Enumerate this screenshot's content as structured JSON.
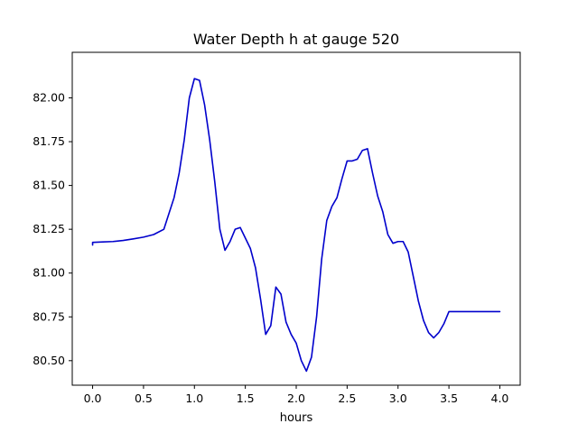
{
  "chart_data": {
    "type": "line",
    "title": "Water Depth h at gauge 520",
    "xlabel": "hours",
    "ylabel": "",
    "xlim": [
      -0.2,
      4.2
    ],
    "ylim": [
      80.36,
      82.26
    ],
    "xticks": [
      0.0,
      0.5,
      1.0,
      1.5,
      2.0,
      2.5,
      3.0,
      3.5,
      4.0
    ],
    "xtick_labels": [
      "0.0",
      "0.5",
      "1.0",
      "1.5",
      "2.0",
      "2.5",
      "3.0",
      "3.5",
      "4.0"
    ],
    "yticks": [
      80.5,
      80.75,
      81.0,
      81.25,
      81.5,
      81.75,
      82.0
    ],
    "ytick_labels": [
      "80.50",
      "80.75",
      "81.00",
      "81.25",
      "81.50",
      "81.75",
      "82.00"
    ],
    "grid": false,
    "legend": "none",
    "series": [
      {
        "color": "#0000cc",
        "x": [
          0.0,
          0.0,
          0.1,
          0.2,
          0.3,
          0.4,
          0.5,
          0.6,
          0.7,
          0.75,
          0.8,
          0.85,
          0.9,
          0.95,
          1.0,
          1.05,
          1.1,
          1.15,
          1.2,
          1.25,
          1.3,
          1.35,
          1.4,
          1.45,
          1.5,
          1.55,
          1.6,
          1.65,
          1.7,
          1.75,
          1.8,
          1.85,
          1.9,
          1.95,
          2.0,
          2.05,
          2.1,
          2.15,
          2.2,
          2.25,
          2.3,
          2.35,
          2.4,
          2.45,
          2.5,
          2.55,
          2.6,
          2.65,
          2.7,
          2.75,
          2.8,
          2.85,
          2.9,
          2.95,
          3.0,
          3.05,
          3.1,
          3.15,
          3.2,
          3.25,
          3.3,
          3.35,
          3.4,
          3.45,
          3.5,
          3.55,
          3.6,
          3.65,
          3.7,
          3.75,
          3.8,
          3.85,
          3.9,
          3.95,
          4.0
        ],
        "y": [
          81.16,
          81.175,
          81.178,
          81.18,
          81.186,
          81.195,
          81.205,
          81.22,
          81.25,
          81.34,
          81.43,
          81.57,
          81.76,
          82.0,
          82.11,
          82.1,
          81.96,
          81.76,
          81.52,
          81.25,
          81.13,
          81.18,
          81.25,
          81.26,
          81.2,
          81.14,
          81.03,
          80.85,
          80.65,
          80.7,
          80.92,
          80.88,
          80.72,
          80.65,
          80.6,
          80.5,
          80.44,
          80.52,
          80.75,
          81.08,
          81.3,
          81.38,
          81.43,
          81.54,
          81.64,
          81.64,
          81.65,
          81.7,
          81.71,
          81.57,
          81.44,
          81.35,
          81.22,
          81.17,
          81.18,
          81.18,
          81.12,
          80.98,
          80.84,
          80.73,
          80.66,
          80.63,
          80.66,
          80.71,
          80.78,
          80.78,
          80.78,
          80.78,
          80.78,
          80.78,
          80.78,
          80.78,
          80.78,
          80.78,
          80.78
        ]
      }
    ]
  }
}
